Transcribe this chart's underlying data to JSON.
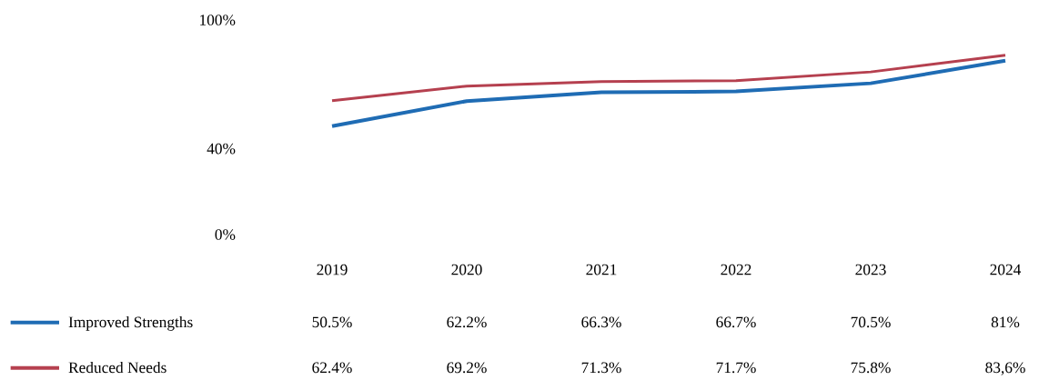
{
  "chart_data": {
    "type": "line",
    "categories": [
      "2019",
      "2020",
      "2021",
      "2022",
      "2023",
      "2024"
    ],
    "ylim": [
      0,
      100
    ],
    "yticks": [
      {
        "value": 0,
        "label": "0%"
      },
      {
        "value": 40,
        "label": "40%"
      },
      {
        "value": 100,
        "label": "100%"
      }
    ],
    "series": [
      {
        "name": "Improved Strengths",
        "color": "#1f6cb4",
        "values": [
          50.5,
          62.2,
          66.3,
          66.7,
          70.5,
          81
        ],
        "value_labels": [
          "50.5%",
          "62.2%",
          "66.3%",
          "66.7%",
          "70.5%",
          "81%"
        ]
      },
      {
        "name": "Reduced Needs",
        "color": "#b5404f",
        "values": [
          62.4,
          69.2,
          71.3,
          71.7,
          75.8,
          83.6
        ],
        "value_labels": [
          "62.4%",
          "69.2%",
          "71.3%",
          "71.7%",
          "75.8%",
          "83,6%"
        ]
      }
    ],
    "legend": "left"
  }
}
